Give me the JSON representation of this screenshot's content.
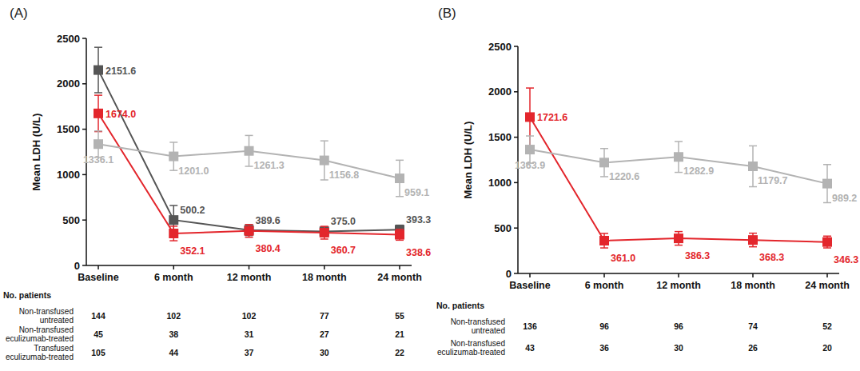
{
  "chart_data": [
    {
      "type": "line",
      "title": "(A)",
      "y_label": "Mean LDH (U/L)",
      "categories": [
        "Baseline",
        "6 month",
        "12 month",
        "18 month",
        "24 month"
      ],
      "ylim": [
        0,
        2500
      ],
      "yticks": [
        0,
        500,
        1000,
        1500,
        2000,
        2500
      ],
      "grid": false,
      "data_labels": true,
      "marker": "square",
      "table_title": "No. patients",
      "series": [
        {
          "name": "Non-transfused untreated",
          "color": "#b3b3b3",
          "values": [
            1336.1,
            1201.0,
            1261.3,
            1156.8,
            959.1
          ],
          "value_labels": [
            "1336.1",
            "1201.0",
            "1261.3",
            "1156.8",
            "959.1"
          ],
          "errors": [
            145,
            155,
            170,
            215,
            200
          ],
          "n_patients": [
            144,
            102,
            102,
            77,
            55
          ]
        },
        {
          "name": "Non-transfused eculizumab-treated",
          "color": "#e3262c",
          "values": [
            1674.0,
            352.1,
            380.4,
            360.7,
            338.6
          ],
          "value_labels": [
            "1674.0",
            "352.1",
            "380.4",
            "360.7",
            "338.6"
          ],
          "errors": [
            200,
            80,
            70,
            70,
            60
          ],
          "n_patients": [
            45,
            38,
            31,
            27,
            21
          ]
        },
        {
          "name": "Transfused eculizumab-treated",
          "color": "#555555",
          "values": [
            2151.6,
            500.2,
            389.6,
            375.0,
            393.3
          ],
          "value_labels": [
            "2151.6",
            "500.2",
            "389.6",
            "375.0",
            "393.3"
          ],
          "errors": [
            250,
            160,
            60,
            50,
            50
          ],
          "n_patients": [
            105,
            44,
            37,
            30,
            22
          ]
        }
      ]
    },
    {
      "type": "line",
      "title": "(B)",
      "y_label": "Mean LDH (U/L)",
      "categories": [
        "Baseline",
        "6 month",
        "12 month",
        "18 month",
        "24 month"
      ],
      "ylim": [
        0,
        2500
      ],
      "yticks": [
        0,
        500,
        1000,
        1500,
        2000,
        2500
      ],
      "grid": false,
      "data_labels": true,
      "marker": "square",
      "table_title": "No. patients",
      "series": [
        {
          "name": "Non-transfused untreated",
          "color": "#b3b3b3",
          "values": [
            1363.9,
            1220.6,
            1282.9,
            1179.7,
            989.2
          ],
          "value_labels": [
            "1363.9",
            "1220.6",
            "1282.9",
            "1179.7",
            "989.2"
          ],
          "errors": [
            150,
            155,
            170,
            225,
            210
          ],
          "n_patients": [
            136,
            96,
            96,
            74,
            52
          ]
        },
        {
          "name": "Non-transfused eculizumab-treated",
          "color": "#e3262c",
          "values": [
            1721.6,
            361.0,
            386.3,
            368.3,
            346.3
          ],
          "value_labels": [
            "1721.6",
            "361.0",
            "386.3",
            "368.3",
            "346.3"
          ],
          "errors": [
            320,
            80,
            75,
            75,
            65
          ],
          "n_patients": [
            43,
            36,
            30,
            26,
            20
          ]
        }
      ]
    }
  ]
}
